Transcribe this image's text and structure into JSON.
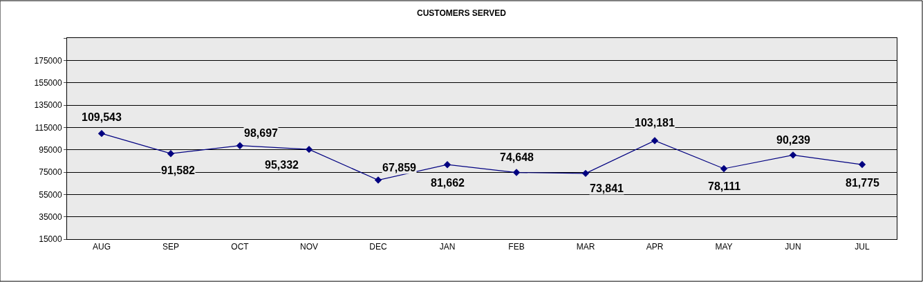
{
  "chart_data": {
    "type": "line",
    "title": "CUSTOMERS SERVED",
    "categories": [
      "AUG",
      "SEP",
      "OCT",
      "NOV",
      "DEC",
      "JAN",
      "FEB",
      "MAR",
      "APR",
      "MAY",
      "JUN",
      "JUL"
    ],
    "series": [
      {
        "color": "#000080",
        "values": [
          109543,
          91582,
          98697,
          95332,
          67859,
          81662,
          74648,
          73841,
          103181,
          78111,
          90239,
          81775
        ],
        "value_labels": [
          "109,543",
          "91,582",
          "98,697",
          "95,332",
          "67,859",
          "81,662",
          "74,648",
          "73,841",
          "103,181",
          "78,111",
          "90,239",
          "81,775"
        ]
      }
    ],
    "ylim": [
      15000,
      195000
    ],
    "yticks": [
      15000,
      35000,
      55000,
      75000,
      95000,
      115000,
      135000,
      155000,
      175000,
      {
        "value": 195000,
        "label": null
      }
    ],
    "grid": "y",
    "marker": "diamond",
    "line_style": "solid"
  }
}
